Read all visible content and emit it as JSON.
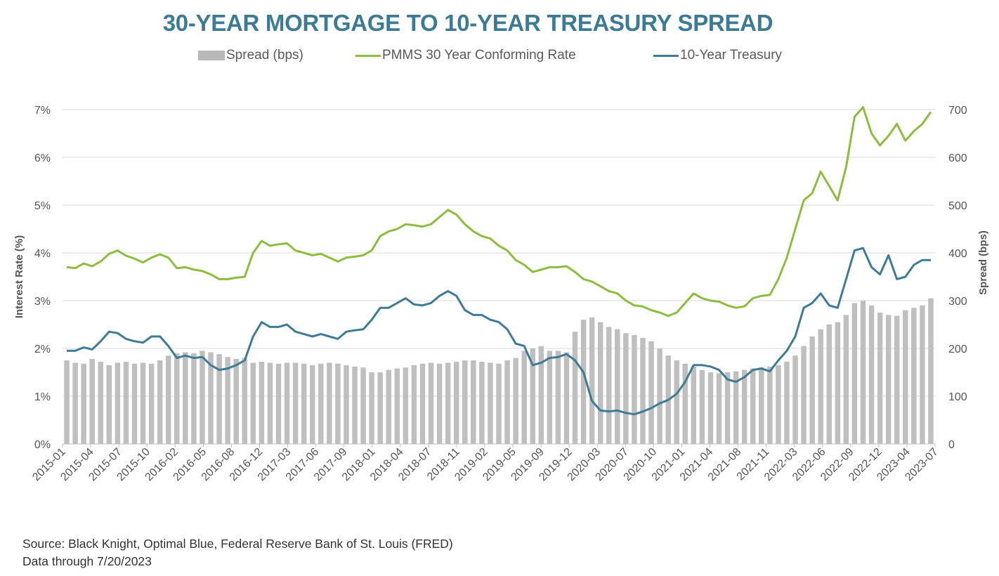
{
  "title": "30-YEAR MORTGAGE TO 10-YEAR TREASURY SPREAD",
  "legend": [
    {
      "label": "Spread (bps)",
      "type": "bar",
      "color": "#bfbfbf"
    },
    {
      "label": "PMMS 30 Year Conforming Rate",
      "type": "line",
      "color": "#8cbd3f"
    },
    {
      "label": "10-Year Treasury",
      "type": "line",
      "color": "#3d7b96"
    }
  ],
  "source_lines": [
    "Source: Black Knight, Optimal Blue, Federal Reserve Bank of St. Louis (FRED)",
    "Data through 7/20/2023"
  ],
  "chart_data": {
    "type": "bar+line",
    "title": "30-YEAR MORTGAGE TO 10-YEAR TREASURY SPREAD",
    "ylabel_left": "Interest Rate (%)",
    "ylabel_right": "Spread (bps)",
    "ylim_left": [
      0,
      7
    ],
    "ylim_right": [
      0,
      700
    ],
    "yticks_left": [
      "0%",
      "1%",
      "2%",
      "3%",
      "4%",
      "5%",
      "6%",
      "7%"
    ],
    "yticks_right": [
      "0",
      "100",
      "200",
      "300",
      "400",
      "500",
      "600",
      "700"
    ],
    "grid": true,
    "legend_position": "top",
    "x_tick_labels": [
      "2015-01",
      "2015-04",
      "2015-07",
      "2015-10",
      "2016-02",
      "2016-05",
      "2016-08",
      "2016-12",
      "2017-03",
      "2017-06",
      "2017-09",
      "2018-01",
      "2018-04",
      "2018-07",
      "2018-11",
      "2019-02",
      "2019-05",
      "2019-09",
      "2019-12",
      "2020-03",
      "2020-07",
      "2020-10",
      "2021-01",
      "2021-04",
      "2021-08",
      "2021-11",
      "2022-03",
      "2022-06",
      "2022-09",
      "2022-12",
      "2023-04",
      "2023-07"
    ],
    "x": [
      "2015-01",
      "2015-02",
      "2015-03",
      "2015-04",
      "2015-05",
      "2015-06",
      "2015-07",
      "2015-08",
      "2015-09",
      "2015-10",
      "2015-11",
      "2015-12",
      "2016-01",
      "2016-02",
      "2016-03",
      "2016-04",
      "2016-05",
      "2016-06",
      "2016-07",
      "2016-08",
      "2016-09",
      "2016-10",
      "2016-11",
      "2016-12",
      "2017-01",
      "2017-02",
      "2017-03",
      "2017-04",
      "2017-05",
      "2017-06",
      "2017-07",
      "2017-08",
      "2017-09",
      "2017-10",
      "2017-11",
      "2017-12",
      "2018-01",
      "2018-02",
      "2018-03",
      "2018-04",
      "2018-05",
      "2018-06",
      "2018-07",
      "2018-08",
      "2018-09",
      "2018-10",
      "2018-11",
      "2018-12",
      "2019-01",
      "2019-02",
      "2019-03",
      "2019-04",
      "2019-05",
      "2019-06",
      "2019-07",
      "2019-08",
      "2019-09",
      "2019-10",
      "2019-11",
      "2019-12",
      "2020-01",
      "2020-02",
      "2020-03",
      "2020-04",
      "2020-05",
      "2020-06",
      "2020-07",
      "2020-08",
      "2020-09",
      "2020-10",
      "2020-11",
      "2020-12",
      "2021-01",
      "2021-02",
      "2021-03",
      "2021-04",
      "2021-05",
      "2021-06",
      "2021-07",
      "2021-08",
      "2021-09",
      "2021-10",
      "2021-11",
      "2021-12",
      "2022-01",
      "2022-02",
      "2022-03",
      "2022-04",
      "2022-05",
      "2022-06",
      "2022-07",
      "2022-08",
      "2022-09",
      "2022-10",
      "2022-11",
      "2022-12",
      "2023-01",
      "2023-02",
      "2023-03",
      "2023-04",
      "2023-05",
      "2023-06",
      "2023-07"
    ],
    "series": [
      {
        "name": "Spread (bps)",
        "type": "bar",
        "values": [
          175,
          170,
          168,
          178,
          172,
          165,
          170,
          172,
          168,
          170,
          168,
          175,
          185,
          190,
          192,
          190,
          195,
          192,
          188,
          182,
          178,
          180,
          170,
          172,
          170,
          168,
          170,
          170,
          168,
          165,
          168,
          170,
          168,
          165,
          162,
          160,
          150,
          150,
          155,
          158,
          160,
          165,
          168,
          170,
          168,
          170,
          172,
          175,
          175,
          172,
          170,
          168,
          175,
          180,
          195,
          200,
          205,
          195,
          195,
          192,
          235,
          260,
          265,
          255,
          245,
          240,
          232,
          228,
          222,
          215,
          200,
          185,
          175,
          168,
          162,
          155,
          150,
          148,
          150,
          152,
          155,
          158,
          160,
          162,
          165,
          172,
          185,
          205,
          225,
          240,
          250,
          255,
          270,
          295,
          300,
          290,
          275,
          270,
          268,
          280,
          285,
          290,
          305
        ]
      },
      {
        "name": "PMMS 30 Year Conforming Rate",
        "type": "line",
        "values": [
          3.7,
          3.68,
          3.78,
          3.72,
          3.82,
          3.98,
          4.05,
          3.94,
          3.88,
          3.8,
          3.9,
          3.97,
          3.9,
          3.68,
          3.7,
          3.65,
          3.62,
          3.55,
          3.45,
          3.45,
          3.48,
          3.5,
          4.0,
          4.25,
          4.15,
          4.18,
          4.2,
          4.05,
          4.0,
          3.95,
          3.98,
          3.9,
          3.82,
          3.9,
          3.92,
          3.95,
          4.05,
          4.35,
          4.45,
          4.5,
          4.6,
          4.58,
          4.55,
          4.6,
          4.75,
          4.9,
          4.8,
          4.6,
          4.45,
          4.35,
          4.3,
          4.15,
          4.05,
          3.85,
          3.75,
          3.6,
          3.65,
          3.7,
          3.7,
          3.72,
          3.6,
          3.45,
          3.4,
          3.3,
          3.2,
          3.15,
          3.0,
          2.9,
          2.88,
          2.8,
          2.75,
          2.68,
          2.75,
          2.95,
          3.15,
          3.05,
          3.0,
          2.98,
          2.9,
          2.85,
          2.88,
          3.05,
          3.1,
          3.12,
          3.45,
          3.9,
          4.5,
          5.1,
          5.25,
          5.7,
          5.4,
          5.1,
          5.8,
          6.85,
          7.05,
          6.5,
          6.25,
          6.45,
          6.7,
          6.35,
          6.55,
          6.7,
          6.95
        ]
      },
      {
        "name": "10-Year Treasury",
        "type": "line",
        "values": [
          1.95,
          1.95,
          2.02,
          1.98,
          2.15,
          2.35,
          2.32,
          2.2,
          2.15,
          2.12,
          2.25,
          2.25,
          2.05,
          1.8,
          1.85,
          1.8,
          1.82,
          1.65,
          1.55,
          1.58,
          1.65,
          1.75,
          2.25,
          2.55,
          2.45,
          2.45,
          2.5,
          2.35,
          2.3,
          2.25,
          2.3,
          2.25,
          2.2,
          2.35,
          2.38,
          2.4,
          2.6,
          2.85,
          2.85,
          2.95,
          3.05,
          2.92,
          2.9,
          2.95,
          3.1,
          3.2,
          3.1,
          2.8,
          2.7,
          2.7,
          2.6,
          2.55,
          2.4,
          2.1,
          2.05,
          1.65,
          1.7,
          1.8,
          1.82,
          1.88,
          1.75,
          1.5,
          0.9,
          0.7,
          0.68,
          0.7,
          0.65,
          0.62,
          0.68,
          0.75,
          0.85,
          0.92,
          1.05,
          1.3,
          1.65,
          1.65,
          1.62,
          1.55,
          1.35,
          1.3,
          1.4,
          1.55,
          1.58,
          1.52,
          1.75,
          1.95,
          2.25,
          2.85,
          2.95,
          3.15,
          2.9,
          2.85,
          3.45,
          4.05,
          4.1,
          3.7,
          3.55,
          3.95,
          3.45,
          3.5,
          3.75,
          3.85,
          3.85
        ]
      }
    ]
  }
}
